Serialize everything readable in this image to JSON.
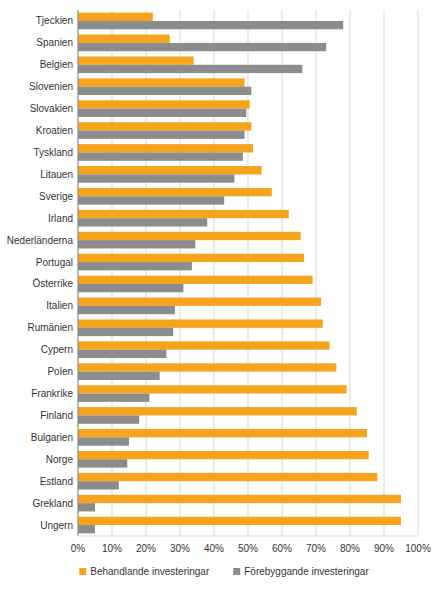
{
  "chart_data": {
    "type": "bar",
    "orientation": "horizontal",
    "categories": [
      "Tjeckien",
      "Spanien",
      "Belgien",
      "Slovenien",
      "Slovakien",
      "Kroatien",
      "Tyskland",
      "Litauen",
      "Sverige",
      "Irland",
      "Nederländerna",
      "Portugal",
      "Österrike",
      "Italien",
      "Rumänien",
      "Cypern",
      "Polen",
      "Frankrike",
      "Finland",
      "Bulgarien",
      "Norge",
      "Estland",
      "Grekland",
      "Ungern"
    ],
    "series": [
      {
        "name": "Behandlande investeringar",
        "color": "#f6a31e",
        "values": [
          22,
          27,
          34,
          49,
          50.5,
          51,
          51.5,
          54,
          57,
          62,
          65.5,
          66.5,
          69,
          71.5,
          72,
          74,
          76,
          79,
          82,
          85,
          85.5,
          88,
          95,
          95
        ]
      },
      {
        "name": "Förebyggande investeringar",
        "color": "#8c8c8c",
        "values": [
          78,
          73,
          66,
          51,
          49.5,
          49,
          48.5,
          46,
          43,
          38,
          34.5,
          33.5,
          31,
          28.5,
          28,
          26,
          24,
          21,
          18,
          15,
          14.5,
          12,
          5,
          5
        ]
      }
    ],
    "xlim": [
      0,
      100
    ],
    "xticks": [
      {
        "value": 0,
        "label": "0%"
      },
      {
        "value": 10,
        "label": "10%"
      },
      {
        "value": 20,
        "label": "20%"
      },
      {
        "value": 30,
        "label": "30%"
      },
      {
        "value": 40,
        "label": "40%"
      },
      {
        "value": 50,
        "label": "50%"
      },
      {
        "value": 60,
        "label": "60%"
      },
      {
        "value": 70,
        "label": "70%"
      },
      {
        "value": 80,
        "label": "80%"
      },
      {
        "value": 90,
        "label": "90%"
      },
      {
        "value": 100,
        "label": "100%"
      }
    ],
    "grid": true,
    "legend": "bottom"
  }
}
